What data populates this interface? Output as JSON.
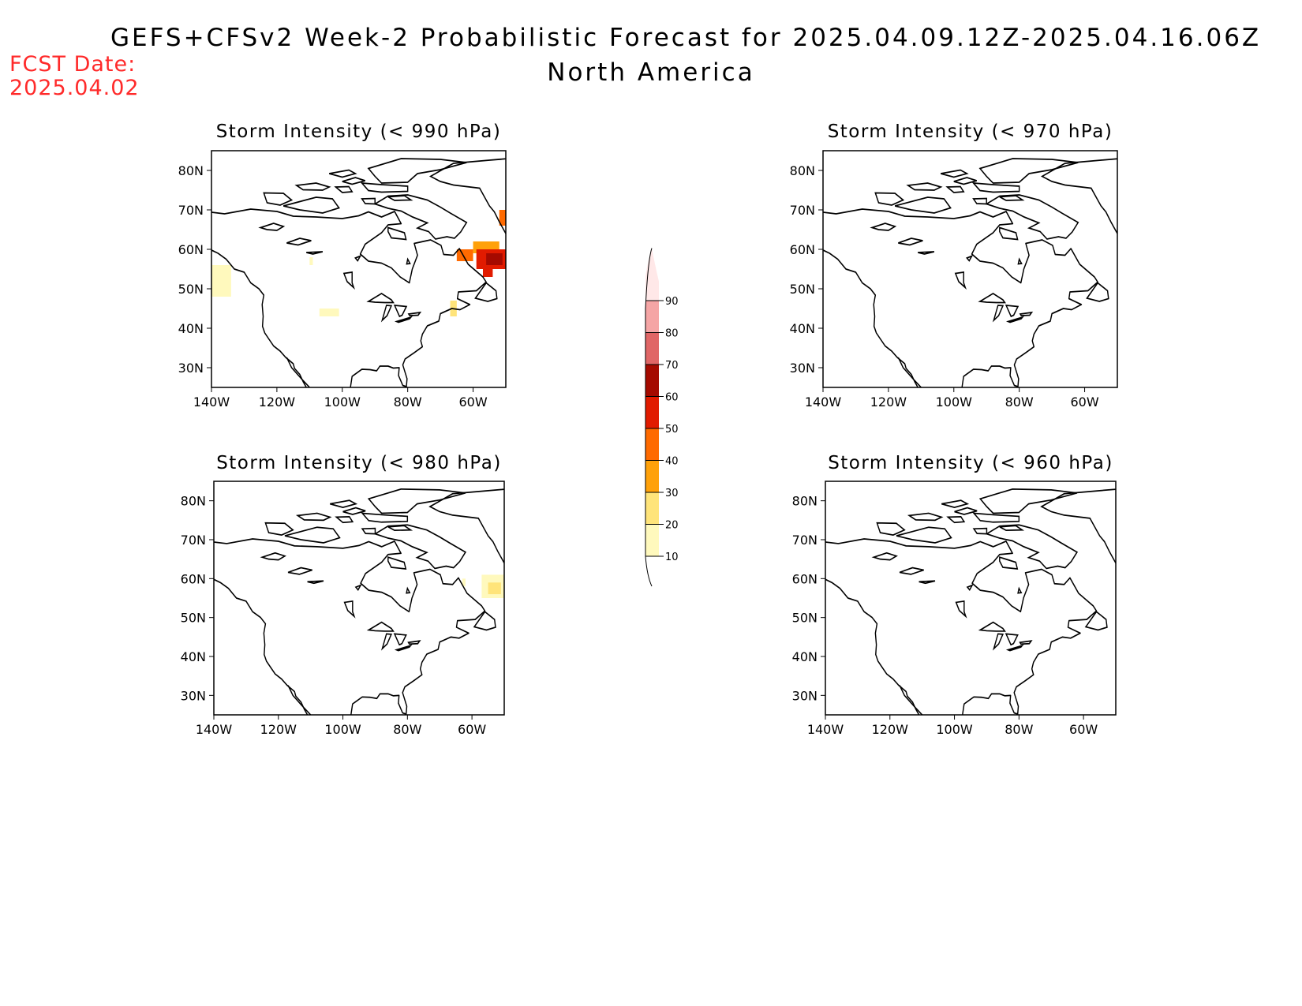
{
  "header": {
    "title": "GEFS+CFSv2 Week-2 Probabilistic Forecast for 2025.04.09.12Z-2025.04.16.06Z",
    "subtitle": "North America",
    "fcst_label": "FCST Date:",
    "fcst_date": "2025.04.02",
    "fcst_color": "#ff2a2a"
  },
  "map_extent": {
    "lon": [
      -140,
      -50
    ],
    "lat": [
      25,
      85
    ]
  },
  "axes": {
    "lat_ticks": [
      {
        "value": 30,
        "label": "30N"
      },
      {
        "value": 40,
        "label": "40N"
      },
      {
        "value": 50,
        "label": "50N"
      },
      {
        "value": 60,
        "label": "60N"
      },
      {
        "value": 70,
        "label": "70N"
      },
      {
        "value": 80,
        "label": "80N"
      }
    ],
    "lon_ticks": [
      {
        "value": -140,
        "label": "140W"
      },
      {
        "value": -120,
        "label": "120W"
      },
      {
        "value": -100,
        "label": "100W"
      },
      {
        "value": -80,
        "label": "80W"
      },
      {
        "value": -60,
        "label": "60W"
      }
    ]
  },
  "colorbar": {
    "levels": [
      {
        "value": 10,
        "label": "10",
        "color": "#fff9bd"
      },
      {
        "value": 20,
        "label": "20",
        "color": "#ffe47a"
      },
      {
        "value": 30,
        "label": "30",
        "color": "#ffa10a"
      },
      {
        "value": 40,
        "label": "40",
        "color": "#ff6a00"
      },
      {
        "value": 50,
        "label": "50",
        "color": "#e11b00"
      },
      {
        "value": 60,
        "label": "60",
        "color": "#a50a00"
      },
      {
        "value": 70,
        "label": "70",
        "color": "#e06666"
      },
      {
        "value": 80,
        "label": "80",
        "color": "#f5a5a5"
      },
      {
        "value": 90,
        "label": "90",
        "color": "#ffe8e8"
      }
    ]
  },
  "panels": [
    {
      "id": "p990",
      "title": "Storm Intensity (< 990 hPa)",
      "regions": [
        {
          "lon": [
            -140,
            -134
          ],
          "lat": [
            48,
            56
          ],
          "prob": 10
        },
        {
          "lon": [
            -110,
            -109
          ],
          "lat": [
            56,
            58
          ],
          "prob": 10
        },
        {
          "lon": [
            -107,
            -101
          ],
          "lat": [
            43,
            45
          ],
          "prob": 10
        },
        {
          "lon": [
            -67,
            -65
          ],
          "lat": [
            43,
            47
          ],
          "prob": 20
        },
        {
          "lon": [
            -65,
            -60
          ],
          "lat": [
            57,
            60
          ],
          "prob": 40
        },
        {
          "lon": [
            -60,
            -52
          ],
          "lat": [
            59,
            62
          ],
          "prob": 30
        },
        {
          "lon": [
            -59,
            -50
          ],
          "lat": [
            55,
            60
          ],
          "prob": 50
        },
        {
          "lon": [
            -57,
            -54
          ],
          "lat": [
            53,
            57
          ],
          "prob": 50
        },
        {
          "lon": [
            -56,
            -51
          ],
          "lat": [
            56,
            59
          ],
          "prob": 60
        },
        {
          "lon": [
            -52,
            -50
          ],
          "lat": [
            66,
            70
          ],
          "prob": 40
        }
      ]
    },
    {
      "id": "p970",
      "title": "Storm Intensity (< 970 hPa)",
      "regions": []
    },
    {
      "id": "p980",
      "title": "Storm Intensity (< 980 hPa)",
      "regions": [
        {
          "lon": [
            -57,
            -50
          ],
          "lat": [
            55,
            61
          ],
          "prob": 10
        },
        {
          "lon": [
            -55,
            -51
          ],
          "lat": [
            56,
            59
          ],
          "prob": 20
        },
        {
          "lon": [
            -63,
            -62
          ],
          "lat": [
            58,
            60
          ],
          "prob": 10
        }
      ]
    },
    {
      "id": "p960",
      "title": "Storm Intensity (< 960 hPa)",
      "regions": []
    }
  ]
}
